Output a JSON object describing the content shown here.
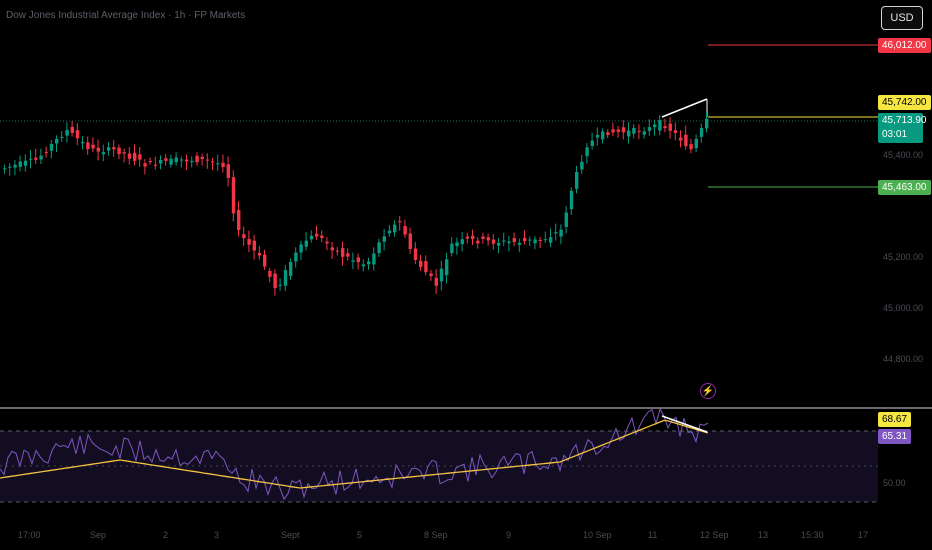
{
  "chart": {
    "title": "Dow Jones Industrial Average Index · 1h · FP Markets",
    "currency": "USD"
  },
  "price_tags": {
    "upper_target": "46,012.00",
    "resistance": "45,742.00",
    "current_price": "45,713.90",
    "countdown": "03:01",
    "support": "45,463.00"
  },
  "price_axis": [
    "45,400.00",
    "45,200.00",
    "45,000.00",
    "44,800.00"
  ],
  "rsi": {
    "ma_value": "68.67",
    "rsi_value": "65.31",
    "axis_label": "50.00"
  },
  "time_axis": [
    "17:00",
    "Sep",
    "2",
    "3",
    "Sept",
    "5",
    "8 Sep",
    "9",
    "10 Sep",
    "11",
    "12 Sep",
    "13",
    "15:30",
    "17"
  ],
  "icons": {
    "alert": "lightning-icon"
  },
  "colors": {
    "up": "#089981",
    "down": "#f23645",
    "rsi_line": "#7e57c2",
    "rsi_ma": "#f5e642",
    "resistance": "#f5e642",
    "support": "#4caf50",
    "target": "#f23645"
  }
}
